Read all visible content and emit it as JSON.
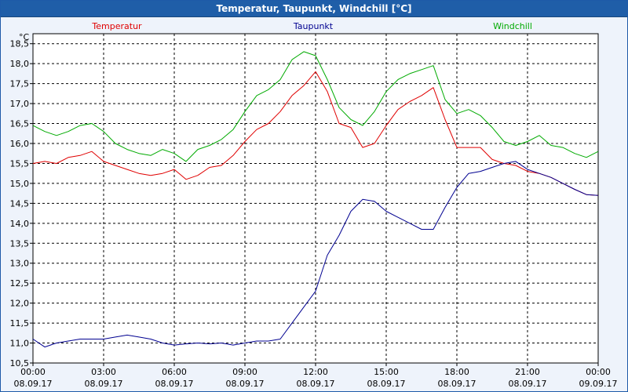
{
  "window": {
    "title": "Temperatur, Taupunkt, Windchill [°C]"
  },
  "chart_data": {
    "type": "line",
    "unit_label": "°C",
    "grid": true,
    "legend_placement": "top",
    "ylim": [
      10.5,
      18.75
    ],
    "xlim": [
      0,
      24
    ],
    "y_ticks": [
      "10,5",
      "11,0",
      "11,5",
      "12,0",
      "12,5",
      "13,0",
      "13,5",
      "14,0",
      "14,5",
      "15,0",
      "15,5",
      "16,0",
      "16,5",
      "17,0",
      "17,5",
      "18,0",
      "18,5"
    ],
    "x_ticks": [
      {
        "time": "00:00",
        "date": "08.09.17"
      },
      {
        "time": "03:00",
        "date": "08.09.17"
      },
      {
        "time": "06:00",
        "date": "08.09.17"
      },
      {
        "time": "09:00",
        "date": "08.09.17"
      },
      {
        "time": "12:00",
        "date": "08.09.17"
      },
      {
        "time": "15:00",
        "date": "08.09.17"
      },
      {
        "time": "18:00",
        "date": "08.09.17"
      },
      {
        "time": "21:00",
        "date": "08.09.17"
      },
      {
        "time": "00:00",
        "date": "09.09.17"
      }
    ],
    "x_hours": [
      0,
      0.5,
      1,
      1.5,
      2,
      2.5,
      3,
      3.5,
      4,
      4.5,
      5,
      5.5,
      6,
      6.5,
      7,
      7.5,
      8,
      8.5,
      9,
      9.5,
      10,
      10.5,
      11,
      11.5,
      12,
      12.5,
      13,
      13.5,
      14,
      14.5,
      15,
      15.5,
      16,
      16.5,
      17,
      17.5,
      18,
      18.5,
      19,
      19.5,
      20,
      20.5,
      21,
      21.5,
      22,
      22.5,
      23,
      23.5,
      24
    ],
    "series": [
      {
        "name": "Temperatur",
        "color": "#e00000",
        "values": [
          15.5,
          15.55,
          15.5,
          15.65,
          15.7,
          15.8,
          15.55,
          15.45,
          15.35,
          15.25,
          15.2,
          15.25,
          15.35,
          15.1,
          15.2,
          15.4,
          15.45,
          15.7,
          16.05,
          16.35,
          16.5,
          16.8,
          17.2,
          17.45,
          17.8,
          17.3,
          16.5,
          16.4,
          15.9,
          16.0,
          16.45,
          16.85,
          17.05,
          17.2,
          17.4,
          16.6,
          15.9,
          15.9,
          15.9,
          15.6,
          15.5,
          15.45,
          15.3,
          15.25,
          15.15,
          15.0,
          14.85,
          14.72,
          14.7
        ]
      },
      {
        "name": "Taupunkt",
        "color": "#000090",
        "values": [
          11.1,
          10.9,
          11.0,
          11.05,
          11.1,
          11.1,
          11.1,
          11.15,
          11.2,
          11.15,
          11.1,
          11.0,
          10.95,
          10.98,
          11.0,
          10.98,
          11.0,
          10.95,
          11.0,
          11.05,
          11.05,
          11.1,
          11.5,
          11.9,
          12.3,
          13.2,
          13.7,
          14.3,
          14.6,
          14.55,
          14.3,
          14.15,
          14.0,
          13.85,
          13.85,
          14.4,
          14.9,
          15.25,
          15.3,
          15.4,
          15.5,
          15.55,
          15.35,
          15.25,
          15.15,
          15.0,
          14.85,
          14.72,
          14.7
        ]
      },
      {
        "name": "Windchill",
        "color": "#00aa00",
        "values": [
          16.45,
          16.3,
          16.2,
          16.3,
          16.45,
          16.5,
          16.3,
          16.0,
          15.85,
          15.75,
          15.7,
          15.85,
          15.75,
          15.55,
          15.85,
          15.95,
          16.1,
          16.35,
          16.8,
          17.2,
          17.35,
          17.6,
          18.1,
          18.3,
          18.2,
          17.6,
          16.9,
          16.6,
          16.45,
          16.8,
          17.3,
          17.6,
          17.75,
          17.85,
          17.95,
          17.1,
          16.75,
          16.85,
          16.7,
          16.4,
          16.05,
          15.95,
          16.05,
          16.2,
          15.95,
          15.9,
          15.75,
          15.65,
          15.8
        ]
      }
    ]
  }
}
